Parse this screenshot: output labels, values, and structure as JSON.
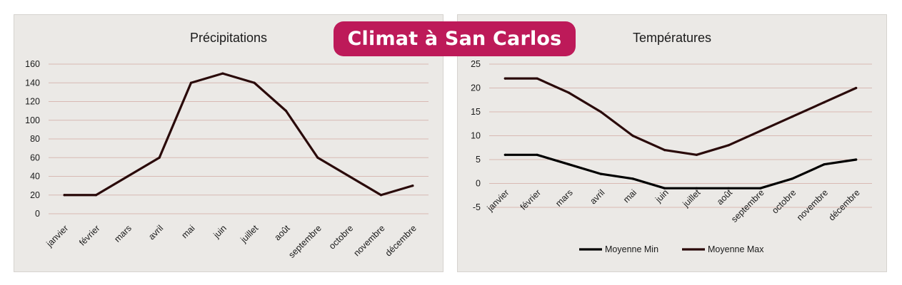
{
  "banner": {
    "title": "Climat à San Carlos",
    "color": "#bd1a59"
  },
  "chart_data": [
    {
      "type": "line",
      "title": "Précipitations",
      "xlabel": "",
      "ylabel": "",
      "categories": [
        "janvier",
        "février",
        "mars",
        "avril",
        "mai",
        "juin",
        "juillet",
        "août",
        "septembre",
        "octobre",
        "novembre",
        "décembre"
      ],
      "series": [
        {
          "values": [
            20,
            20,
            40,
            60,
            140,
            150,
            140,
            110,
            60,
            40,
            20,
            30
          ],
          "color": "#2a0a0a"
        }
      ],
      "ylim": [
        0,
        160
      ],
      "yticks": [
        0,
        20,
        40,
        60,
        80,
        100,
        120,
        140,
        160
      ],
      "grid": true,
      "gridColor": "#d8b9b3",
      "legend": "none"
    },
    {
      "type": "line",
      "title": "Températures",
      "xlabel": "",
      "ylabel": "",
      "categories": [
        "janvier",
        "février",
        "mars",
        "avril",
        "mai",
        "juin",
        "juillet",
        "août",
        "septembre",
        "octobre",
        "novembre",
        "décembre"
      ],
      "series": [
        {
          "name": "Moyenne Min",
          "values": [
            6,
            6,
            4,
            2,
            1,
            -1,
            -1,
            -1,
            -1,
            1,
            4,
            5
          ],
          "color": "#000000"
        },
        {
          "name": "Moyenne Max",
          "values": [
            22,
            22,
            19,
            15,
            10,
            7,
            6,
            8,
            11,
            14,
            17,
            20
          ],
          "color": "#2a0a0a"
        }
      ],
      "ylim": [
        -5,
        25
      ],
      "yticks": [
        -5,
        0,
        5,
        10,
        15,
        20,
        25
      ],
      "grid": true,
      "gridColor": "#d8b9b3",
      "legend": "bottom"
    }
  ]
}
